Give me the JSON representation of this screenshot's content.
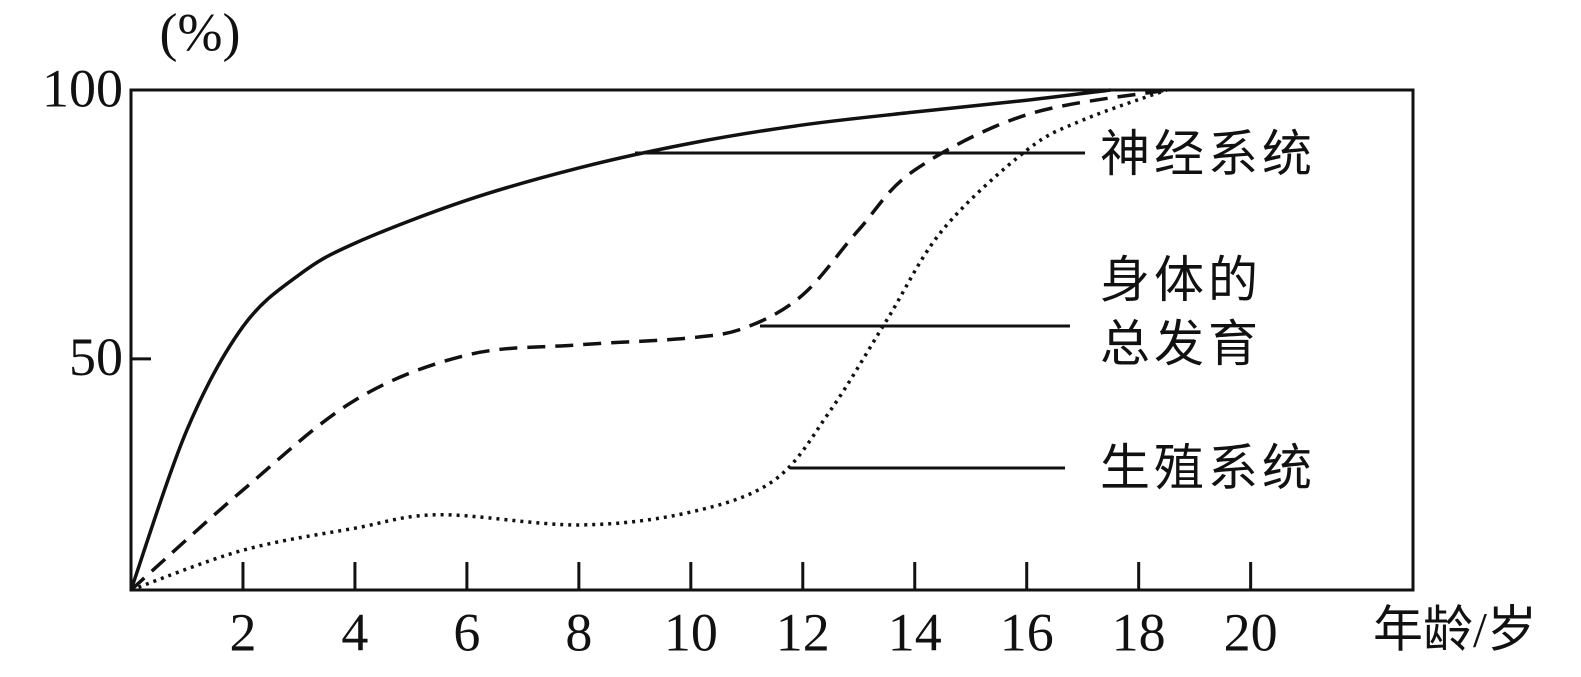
{
  "chart_data": {
    "type": "line",
    "y_label": "(%)",
    "x_label": "年龄/岁",
    "xlim": [
      0,
      22.9
    ],
    "ylim": [
      7,
      100
    ],
    "xticks": [
      2,
      4,
      6,
      8,
      10,
      12,
      14,
      16,
      18,
      20
    ],
    "yticks": [
      50,
      100
    ],
    "series": [
      {
        "name": "神经系统",
        "color": "#111111",
        "style": "solid",
        "x": [
          0,
          1,
          2,
          3,
          4,
          6,
          8,
          10,
          12,
          14,
          16,
          17.5
        ],
        "values": [
          7,
          36.8,
          56,
          65.6,
          71.5,
          79.5,
          85.5,
          90.1,
          93.5,
          95.9,
          98.1,
          100
        ]
      },
      {
        "name": "身体的\n总发育",
        "color": "#111111",
        "style": "dashed",
        "x": [
          0,
          2,
          4,
          6,
          8,
          10,
          11,
          12,
          13,
          14,
          16,
          18.5
        ],
        "values": [
          7,
          25.6,
          42.3,
          50.7,
          52.6,
          53.9,
          55.9,
          61.9,
          74,
          85.1,
          95.4,
          100
        ]
      },
      {
        "name": "生殖系统",
        "color": "#111111",
        "style": "dotted",
        "x": [
          0,
          2,
          4,
          5.5,
          8,
          10,
          11.5,
          12.5,
          13.5,
          14.5,
          16,
          17,
          18.5
        ],
        "values": [
          7,
          14.4,
          18.5,
          21,
          19.1,
          21.5,
          27.5,
          40.5,
          57.2,
          74,
          88.8,
          94.4,
          100
        ]
      }
    ]
  }
}
